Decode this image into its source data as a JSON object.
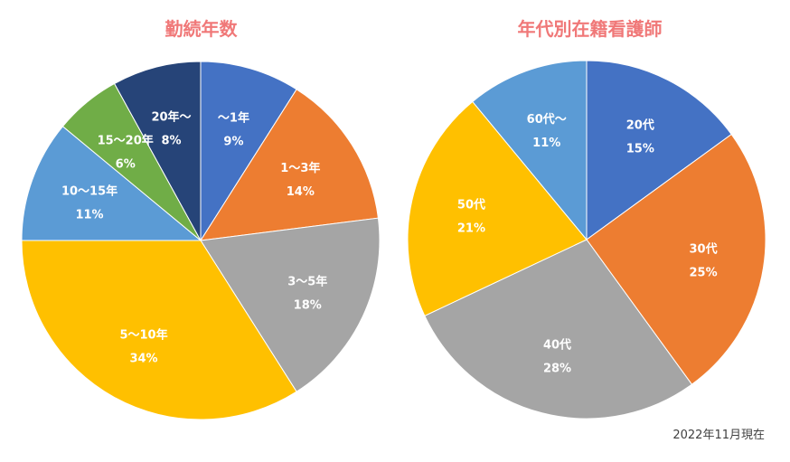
{
  "chart_data": [
    {
      "type": "pie",
      "title": "勤続年数",
      "slices": [
        {
          "label": "～1年",
          "value": 9,
          "value_label": "9%",
          "color": "#4472C4"
        },
        {
          "label": "1～3年",
          "value": 14,
          "value_label": "14%",
          "color": "#ED7D31"
        },
        {
          "label": "3～5年",
          "value": 18,
          "value_label": "18%",
          "color": "#A5A5A5"
        },
        {
          "label": "5～10年",
          "value": 34,
          "value_label": "34%",
          "color": "#FFC000"
        },
        {
          "label": "10～15年",
          "value": 11,
          "value_label": "11%",
          "color": "#5B9BD5"
        },
        {
          "label": "15～20年",
          "value": 6,
          "value_label": "6%",
          "color": "#70AD47"
        },
        {
          "label": "20年～",
          "value": 8,
          "value_label": "8%",
          "color": "#264478"
        }
      ],
      "start_angle": "12 o'clock",
      "direction": "clockwise",
      "legend": "none"
    },
    {
      "type": "pie",
      "title": "年代別在籍看護師",
      "slices": [
        {
          "label": "20代",
          "value": 15,
          "value_label": "15%",
          "color": "#4472C4"
        },
        {
          "label": "30代",
          "value": 25,
          "value_label": "25%",
          "color": "#ED7D31"
        },
        {
          "label": "40代",
          "value": 28,
          "value_label": "28%",
          "color": "#A5A5A5"
        },
        {
          "label": "50代",
          "value": 21,
          "value_label": "21%",
          "color": "#FFC000"
        },
        {
          "label": "60代～",
          "value": 11,
          "value_label": "11%",
          "color": "#5B9BD5"
        }
      ],
      "start_angle": "12 o'clock",
      "direction": "clockwise",
      "legend": "none"
    }
  ],
  "title_color": "#F07878",
  "footnote": "2022年11月現在"
}
